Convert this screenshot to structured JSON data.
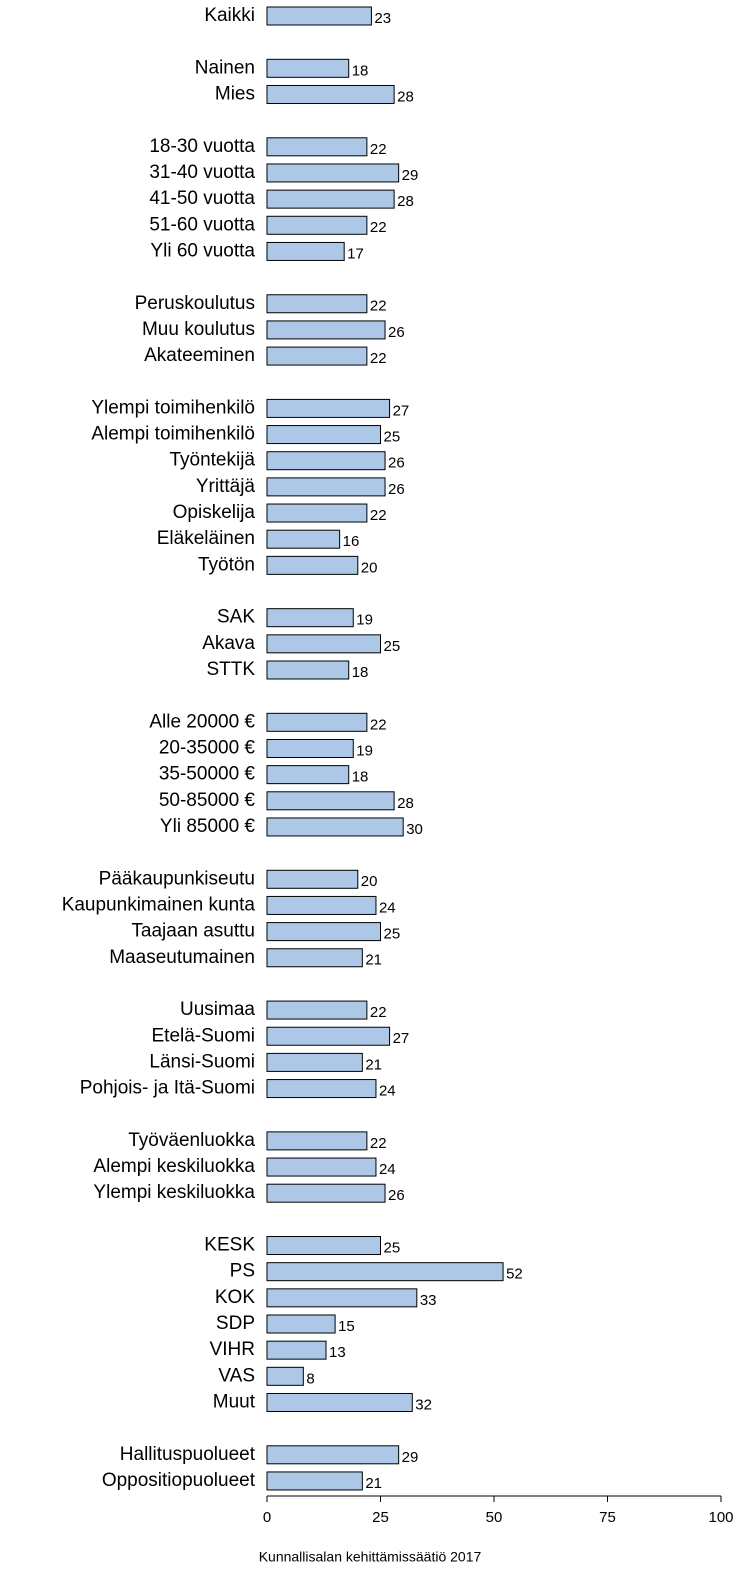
{
  "chart_data": {
    "type": "hbar",
    "categories": [
      "Kaikki",
      null,
      "Nainen",
      "Mies",
      null,
      "18-30 vuotta",
      "31-40 vuotta",
      "41-50 vuotta",
      "51-60 vuotta",
      "Yli 60 vuotta",
      null,
      "Peruskoulutus",
      "Muu koulutus",
      "Akateeminen",
      null,
      "Ylempi toimihenkilö",
      "Alempi toimihenkilö",
      "Työntekijä",
      "Yrittäjä",
      "Opiskelija",
      "Eläkeläinen",
      "Työtön",
      null,
      "SAK",
      "Akava",
      "STTK",
      null,
      "Alle 20000 €",
      "20-35000 €",
      "35-50000 €",
      "50-85000 €",
      "Yli 85000 €",
      null,
      "Pääkaupunkiseutu",
      "Kaupunkimainen kunta",
      "Taajaan asuttu",
      "Maaseutumainen",
      null,
      "Uusimaa",
      "Etelä-Suomi",
      "Länsi-Suomi",
      "Pohjois- ja Itä-Suomi",
      null,
      "Työväenluokka",
      "Alempi keskiluokka",
      "Ylempi keskiluokka",
      null,
      "KESK",
      "PS",
      "KOK",
      "SDP",
      "VIHR",
      "VAS",
      "Muut",
      null,
      "Hallituspuolueet",
      "Oppositiopuolueet"
    ],
    "values": [
      23,
      null,
      18,
      28,
      null,
      22,
      29,
      28,
      22,
      17,
      null,
      22,
      26,
      22,
      null,
      27,
      25,
      26,
      26,
      22,
      16,
      20,
      null,
      19,
      25,
      18,
      null,
      22,
      19,
      18,
      28,
      30,
      null,
      20,
      24,
      25,
      21,
      null,
      22,
      27,
      21,
      24,
      null,
      22,
      24,
      26,
      null,
      25,
      52,
      33,
      15,
      13,
      8,
      32,
      null,
      29,
      21
    ],
    "color": "#adc8e6",
    "xlim": [
      0,
      100
    ],
    "xticks": [
      0,
      25,
      50,
      75,
      100
    ],
    "source": "Kunnallisalan kehittämissäätiö 2017"
  }
}
